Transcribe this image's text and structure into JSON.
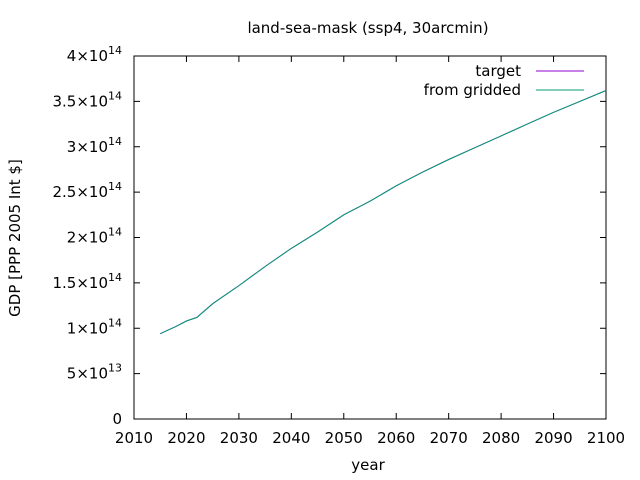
{
  "chart_data": {
    "type": "line",
    "title": "land-sea-mask (ssp4, 30arcmin)",
    "xlabel": "year",
    "ylabel": "GDP [PPP 2005 Int $]",
    "xlim": [
      2010,
      2100
    ],
    "ylim": [
      0,
      400000000000000.0
    ],
    "x_ticks": [
      2010,
      2020,
      2030,
      2040,
      2050,
      2060,
      2070,
      2080,
      2090,
      2100
    ],
    "x_tick_labels": [
      "2010",
      "2020",
      "2030",
      "2040",
      "2050",
      "2060",
      "2070",
      "2080",
      "2090",
      "2100"
    ],
    "y_ticks": [
      {
        "value": 0,
        "mantissa": "0",
        "exponent": ""
      },
      {
        "value": 50000000000000.0,
        "mantissa": "5×10",
        "exponent": "13"
      },
      {
        "value": 100000000000000.0,
        "mantissa": "1×10",
        "exponent": "14"
      },
      {
        "value": 150000000000000.0,
        "mantissa": "1.5×10",
        "exponent": "14"
      },
      {
        "value": 200000000000000.0,
        "mantissa": "2×10",
        "exponent": "14"
      },
      {
        "value": 250000000000000.0,
        "mantissa": "2.5×10",
        "exponent": "14"
      },
      {
        "value": 300000000000000.0,
        "mantissa": "3×10",
        "exponent": "14"
      },
      {
        "value": 350000000000000.0,
        "mantissa": "3.5×10",
        "exponent": "14"
      },
      {
        "value": 400000000000000.0,
        "mantissa": "4×10",
        "exponent": "14"
      }
    ],
    "legend_position": "top-right",
    "grid": false,
    "series": [
      {
        "name": "target",
        "color": "#9400d3",
        "x": [
          2015,
          2018,
          2020,
          2022,
          2025,
          2030,
          2035,
          2040,
          2045,
          2050,
          2055,
          2060,
          2065,
          2070,
          2075,
          2080,
          2085,
          2090,
          2095,
          2100
        ],
        "y": [
          94000000000000.0,
          102000000000000.0,
          108000000000000.0,
          112000000000000.0,
          127000000000000.0,
          147000000000000.0,
          168000000000000.0,
          188000000000000.0,
          206000000000000.0,
          225000000000000.0,
          240000000000000.0,
          257000000000000.0,
          272000000000000.0,
          286000000000000.0,
          299000000000000.0,
          312000000000000.0,
          325000000000000.0,
          338000000000000.0,
          350000000000000.0,
          362000000000000.0
        ]
      },
      {
        "name": "from gridded",
        "color": "#009e73",
        "x": [
          2015,
          2018,
          2020,
          2022,
          2025,
          2030,
          2035,
          2040,
          2045,
          2050,
          2055,
          2060,
          2065,
          2070,
          2075,
          2080,
          2085,
          2090,
          2095,
          2100
        ],
        "y": [
          94000000000000.0,
          102000000000000.0,
          108000000000000.0,
          112000000000000.0,
          127000000000000.0,
          147000000000000.0,
          168000000000000.0,
          188000000000000.0,
          206000000000000.0,
          225000000000000.0,
          240000000000000.0,
          257000000000000.0,
          272000000000000.0,
          286000000000000.0,
          299000000000000.0,
          312000000000000.0,
          325000000000000.0,
          338000000000000.0,
          350000000000000.0,
          362000000000000.0
        ]
      }
    ]
  }
}
